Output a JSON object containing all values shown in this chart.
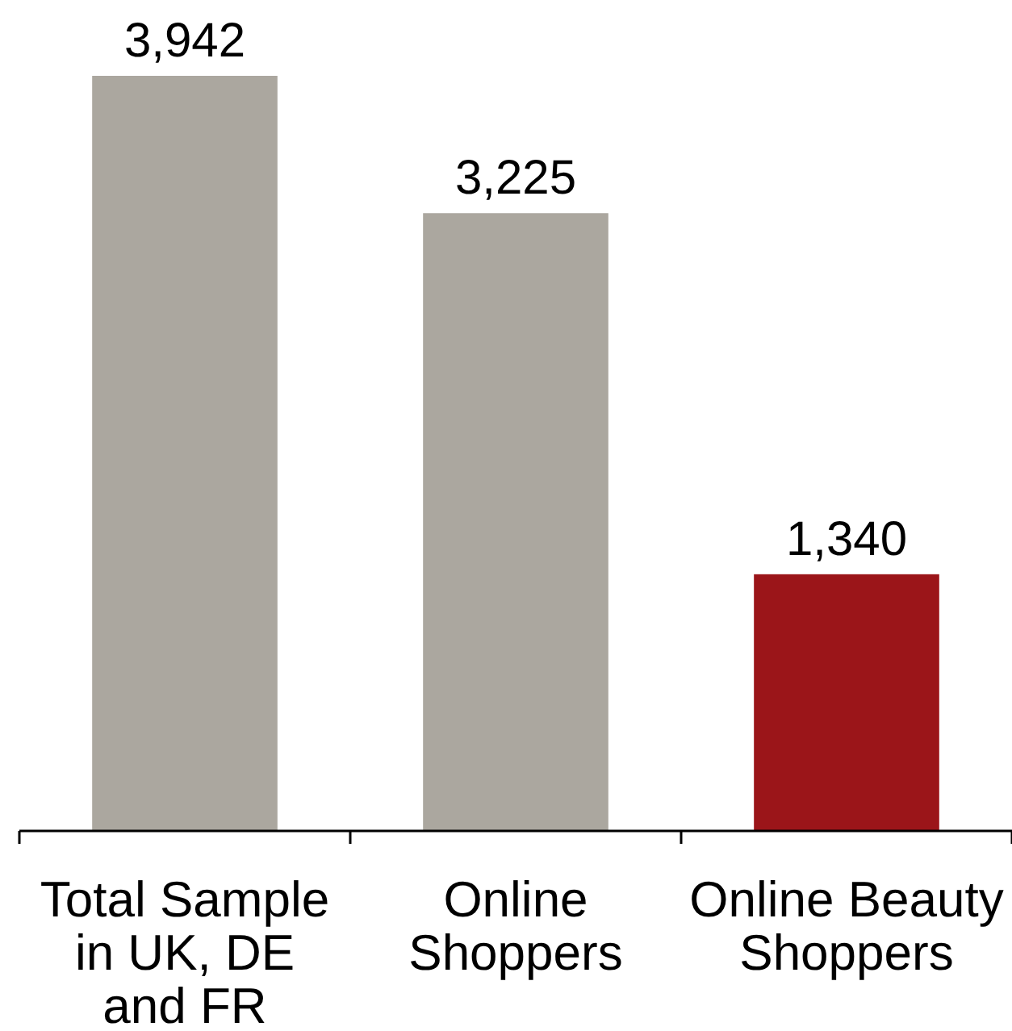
{
  "chart_data": {
    "type": "bar",
    "categories": [
      "Total Sample in UK, DE and FR",
      "Online Shoppers",
      "Online Beauty Shoppers"
    ],
    "values": [
      3942,
      3225,
      1340
    ],
    "colors": [
      "#aba79f",
      "#aba79f",
      "#9b1519"
    ],
    "value_labels": [
      "3,942",
      "3,225",
      "1,340"
    ]
  }
}
